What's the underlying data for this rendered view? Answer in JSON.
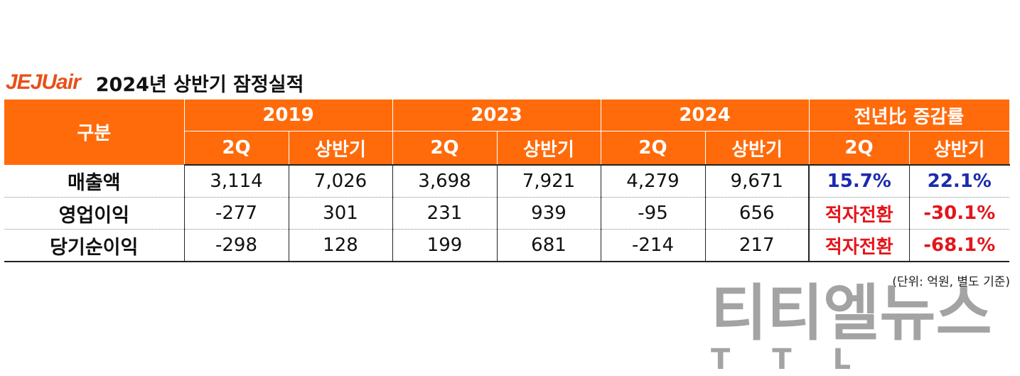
{
  "logo_text": "JEJUair",
  "title": "2024년 상반기 잠정실적",
  "table": {
    "corner": "구분",
    "groups": [
      "2019",
      "2023",
      "2024",
      "전년比 증감률"
    ],
    "subheaders": [
      "2Q",
      "상반기",
      "2Q",
      "상반기",
      "2Q",
      "상반기",
      "2Q",
      "상반기"
    ],
    "rows": [
      {
        "label": "매출액",
        "values": [
          "3,114",
          "7,026",
          "3,698",
          "7,921",
          "4,279",
          "9,671"
        ],
        "yoy_2q": "15.7%",
        "yoy_half": "22.1%"
      },
      {
        "label": "영업이익",
        "values": [
          "-277",
          "301",
          "231",
          "939",
          "-95",
          "656"
        ],
        "yoy_2q": "적자전환",
        "yoy_half": "-30.1%"
      },
      {
        "label": "당기순이익",
        "values": [
          "-298",
          "128",
          "199",
          "681",
          "-214",
          "217"
        ],
        "yoy_2q": "적자전환",
        "yoy_half": "-68.1%"
      }
    ]
  },
  "unit_note": "(단위: 억원, 별도 기준)",
  "watermark": "티티엘뉴스",
  "watermark_sub": "TTL",
  "colors": {
    "header_bg": "#ff6b0b",
    "logo": "#e8501a",
    "positive": "#1c2ab0",
    "negative": "#e3151b"
  }
}
